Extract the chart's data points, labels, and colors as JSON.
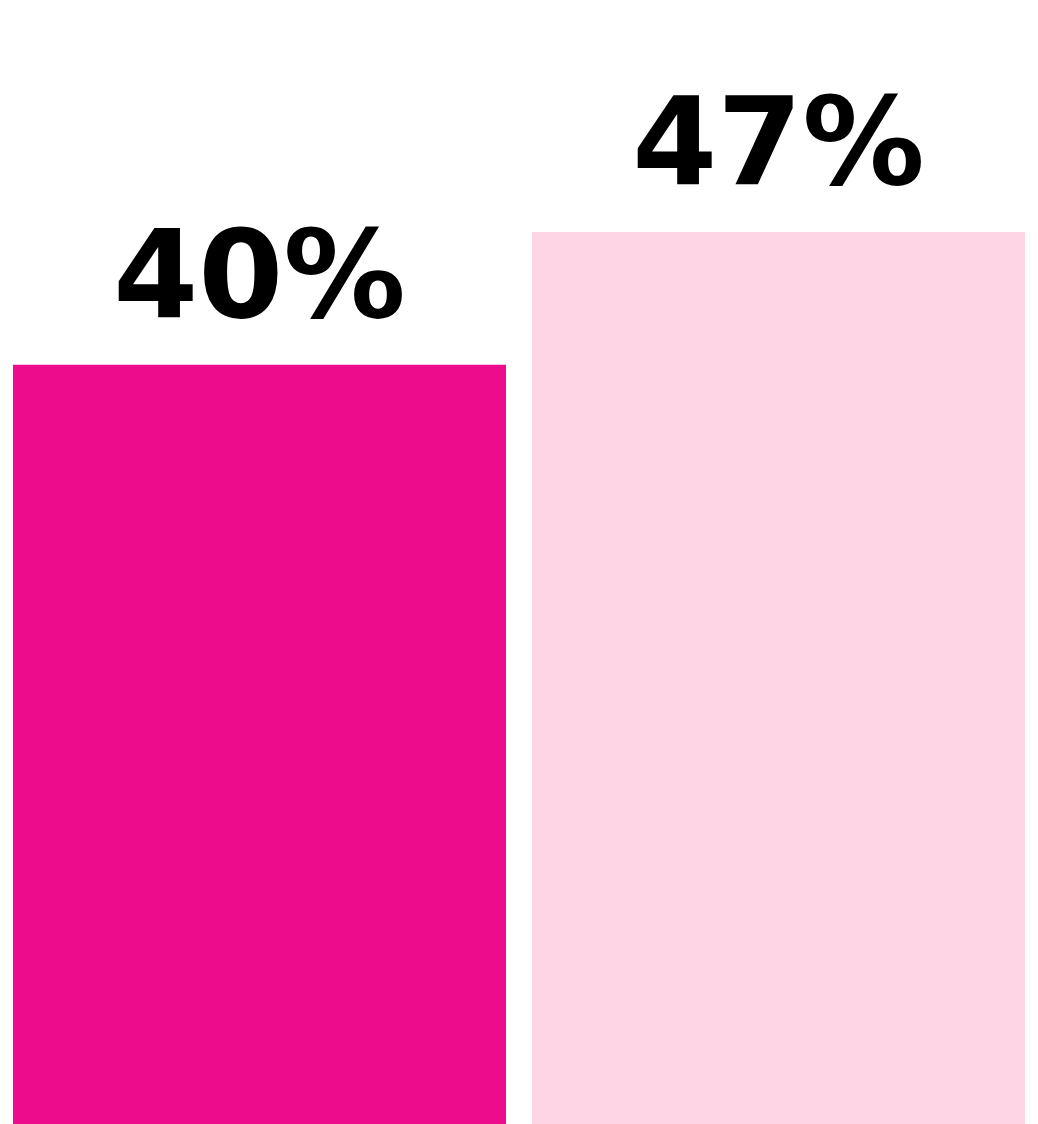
{
  "chart_data": {
    "type": "bar",
    "categories": [
      null,
      null
    ],
    "values": [
      40,
      47
    ],
    "colors": [
      "#ec0c8c",
      "#fdd5e5"
    ],
    "value_labels": [
      "40%",
      "47%"
    ],
    "grid": false,
    "legend": false
  }
}
